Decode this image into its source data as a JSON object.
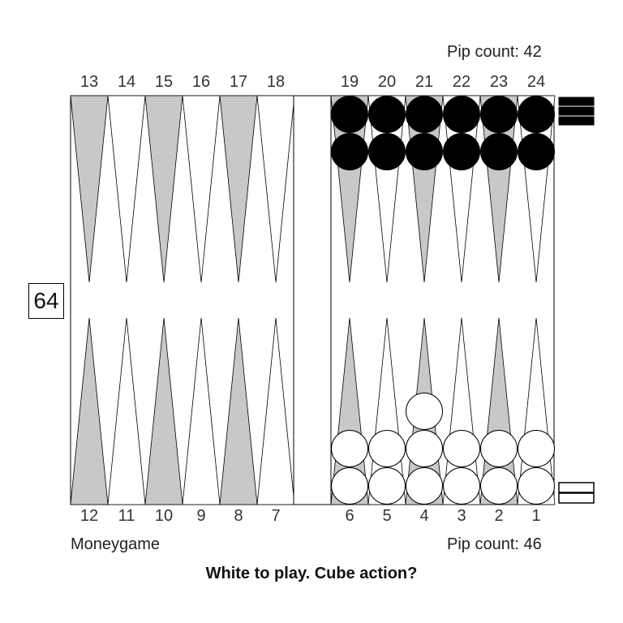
{
  "pip_top": "Pip count: 42",
  "pip_bottom": "Pip count: 46",
  "match_type": "Moneygame",
  "cube_value": "64",
  "caption": "White to play. Cube action?",
  "top_numbers": [
    "13",
    "14",
    "15",
    "16",
    "17",
    "18",
    "19",
    "20",
    "21",
    "22",
    "23",
    "24"
  ],
  "bottom_numbers": [
    "12",
    "11",
    "10",
    "9",
    "8",
    "7",
    "6",
    "5",
    "4",
    "3",
    "2",
    "1"
  ],
  "black_checkers": {
    "19": 2,
    "20": 2,
    "21": 2,
    "22": 2,
    "23": 2,
    "24": 2
  },
  "white_checkers": {
    "6": 2,
    "5": 2,
    "4": 3,
    "3": 2,
    "2": 2,
    "1": 2
  },
  "black_borne_off": 3,
  "white_borne_off": 2,
  "colors": {
    "dark_point": "#c8c8c8",
    "light_point": "#ffffff",
    "black_checker": "#000000",
    "white_checker": "#ffffff",
    "board_line": "#000000"
  }
}
